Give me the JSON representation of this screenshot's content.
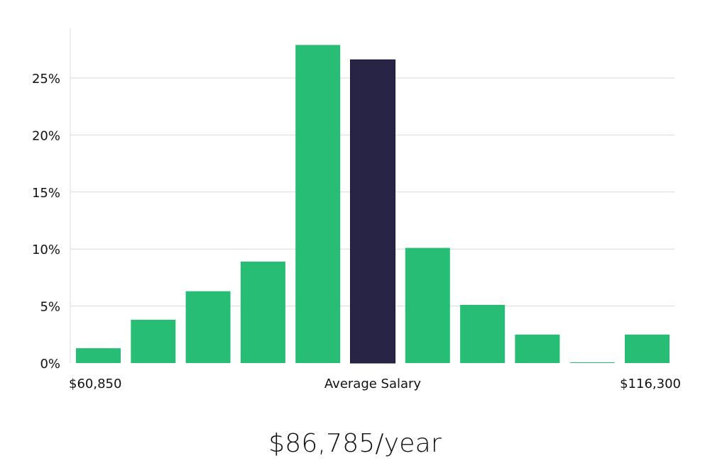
{
  "chart_data": {
    "type": "bar",
    "categories": [
      "$60,850",
      "",
      "",
      "",
      "",
      "Average Salary",
      "",
      "",
      "",
      "",
      "$116,300"
    ],
    "values": [
      1.3,
      3.8,
      6.3,
      8.9,
      27.9,
      26.6,
      10.1,
      5.1,
      2.5,
      0.05,
      2.5
    ],
    "highlight_index": 5,
    "ylim": [
      0,
      30
    ],
    "yticks": [
      0,
      5,
      10,
      15,
      20,
      25
    ],
    "ytick_labels": [
      "0%",
      "5%",
      "10%",
      "15%",
      "20%",
      "25%"
    ],
    "x_labels": {
      "left": "$60,850",
      "center": "Average Salary",
      "right": "$116,300"
    },
    "colors": {
      "bar": "#27bd74",
      "bar_highlight": "#272446",
      "grid": "#d9d9d9"
    },
    "grid": true
  },
  "summary": {
    "average_salary": "$86,785/year"
  }
}
